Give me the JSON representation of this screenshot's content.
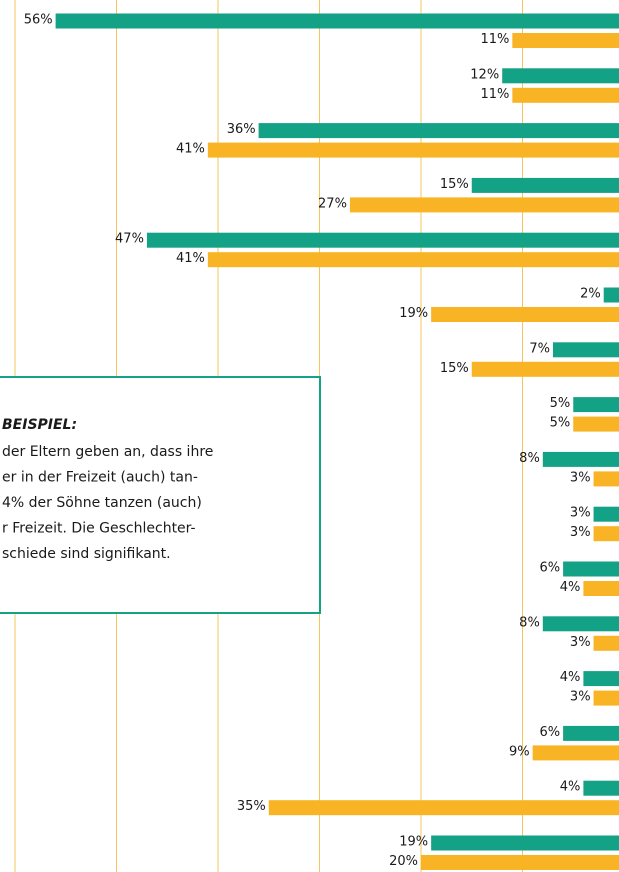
{
  "chart_data": {
    "type": "bar",
    "orientation": "horizontal",
    "series": [
      {
        "color": "#13a286",
        "values": [
          56,
          12,
          36,
          15,
          47,
          2,
          7,
          5,
          8,
          3,
          6,
          8,
          4,
          6,
          4,
          19
        ],
        "value_labels": [
          "56%",
          "12%",
          "36%",
          "15%",
          "47%",
          "2%",
          "7%",
          "5%",
          "8%",
          "3%",
          "6%",
          "8%",
          "4%",
          "6%",
          "4%",
          "19%"
        ]
      },
      {
        "color": "#f8b424",
        "values": [
          11,
          11,
          41,
          27,
          41,
          19,
          15,
          5,
          3,
          3,
          4,
          3,
          3,
          9,
          35,
          20
        ],
        "value_labels": [
          "11%",
          "11%",
          "41%",
          "27%",
          "41%",
          "19%",
          "15%",
          "5%",
          "3%",
          "3%",
          "4%",
          "3%",
          "3%",
          "9%",
          "35%",
          "20%"
        ]
      }
    ],
    "xticks": [
      10,
      20,
      30,
      40,
      50,
      60
    ],
    "grid": true,
    "grid_color": "#f6c45a",
    "annotation": {
      "title": "BEISPIEL:",
      "lines": [
        "der Eltern geben an, dass ihre",
        "er in der Freizeit (auch) tan-",
        "4% der Söhne tanzen (auch)",
        "r Freizeit. Die Geschlechter-",
        "schiede sind signifikant."
      ],
      "color": "#13a286"
    }
  }
}
